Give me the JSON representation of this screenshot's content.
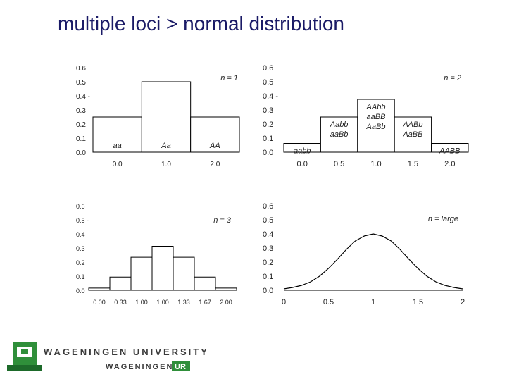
{
  "slide": {
    "title": "multiple loci >  normal distribution"
  },
  "footer": {
    "org_line1": "WAGENINGEN UNIVERSITY",
    "org_line2_prefix": "WAGENINGEN",
    "org_line2_badge": "UR"
  },
  "chart_data": [
    {
      "type": "bar",
      "legend_label": "n = 1",
      "ylim": [
        0,
        0.6
      ],
      "yticks": [
        "0.0",
        "0.1",
        "0.2",
        "0.3",
        "0.4 -",
        "0.5",
        "0.6"
      ],
      "categories": [
        "0.0",
        "1.0",
        "2.0"
      ],
      "values": [
        0.25,
        0.5,
        0.25
      ],
      "bar_labels": [
        [
          "aa"
        ],
        [
          "Aa"
        ],
        [
          "AA"
        ]
      ],
      "grid": false
    },
    {
      "type": "bar",
      "legend_label": "n = 2",
      "ylim": [
        0,
        0.6
      ],
      "yticks": [
        "0.0",
        "0.1",
        "0.2",
        "0.3",
        "0.4 -",
        "0.5",
        "0.6"
      ],
      "categories": [
        "0.0",
        "0.5",
        "1.0",
        "1.5",
        "2.0"
      ],
      "values": [
        0.0625,
        0.25,
        0.375,
        0.25,
        0.0625
      ],
      "bar_labels": [
        [
          "aabb"
        ],
        [
          "Aabb",
          "aaBb"
        ],
        [
          "AAbb",
          "aaBB",
          "AaBb"
        ],
        [
          "AABb",
          "AaBB"
        ],
        [
          "AABB"
        ]
      ],
      "grid": false
    },
    {
      "type": "bar",
      "legend_label": "n = 3",
      "ylim": [
        0,
        0.6
      ],
      "yticks": [
        "0.0",
        "0.1",
        "0.2",
        "0.3",
        "0.4",
        "0.5 -",
        "0.6"
      ],
      "categories": [
        "0.00",
        "0.33",
        "1.00",
        "1.00",
        "1.33",
        "1.67",
        "2.00"
      ],
      "values": [
        0.0156,
        0.0938,
        0.2344,
        0.3125,
        0.2344,
        0.0938,
        0.0156
      ],
      "grid": false
    },
    {
      "type": "line",
      "legend_label": "n = large",
      "ylim": [
        0,
        0.6
      ],
      "xlim": [
        0,
        2
      ],
      "yticks": [
        "0.0",
        "0.1",
        "0.2",
        "0.3",
        "0.4",
        "0.5",
        "0.6"
      ],
      "xticks": [
        "0",
        "0.5",
        "1",
        "1.5",
        "2"
      ],
      "x": [
        0,
        0.1,
        0.2,
        0.3,
        0.4,
        0.5,
        0.6,
        0.7,
        0.8,
        0.9,
        1.0,
        1.1,
        1.2,
        1.3,
        1.4,
        1.5,
        1.6,
        1.7,
        1.8,
        1.9,
        2.0
      ],
      "y": [
        0.01,
        0.02,
        0.035,
        0.06,
        0.1,
        0.155,
        0.22,
        0.29,
        0.35,
        0.385,
        0.4,
        0.385,
        0.35,
        0.29,
        0.22,
        0.155,
        0.1,
        0.06,
        0.035,
        0.02,
        0.01
      ],
      "grid": false
    }
  ]
}
